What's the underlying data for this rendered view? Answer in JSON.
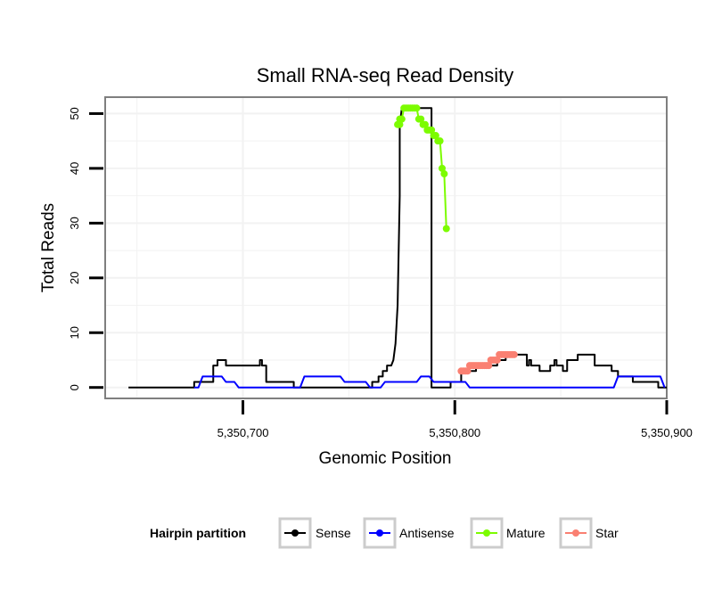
{
  "chart_data": {
    "type": "line",
    "title": "Small RNA-seq Read Density",
    "xlabel": "Genomic Position",
    "ylabel": "Total Reads",
    "xlim": [
      5350635,
      5350900
    ],
    "ylim": [
      -2,
      53
    ],
    "x_ticks": [
      5350700,
      5350800,
      5350900
    ],
    "x_tick_labels": [
      "5,350,700",
      "5,350,800",
      "5,350,900"
    ],
    "y_ticks": [
      0,
      10,
      20,
      30,
      40,
      50
    ],
    "y_tick_labels": [
      "0",
      "10",
      "20",
      "30",
      "40",
      "50"
    ],
    "grid": true,
    "legend": {
      "title": "Hairpin partition",
      "position": "bottom",
      "entries": [
        {
          "label": "Sense",
          "color": "#000000"
        },
        {
          "label": "Antisense",
          "color": "#0000ff"
        },
        {
          "label": "Mature",
          "color": "#7cfc00"
        },
        {
          "label": "Star",
          "color": "#fa8072"
        }
      ]
    },
    "series": [
      {
        "name": "Sense",
        "color": "#000000",
        "points": [
          [
            5350646,
            0
          ],
          [
            5350677,
            0
          ],
          [
            5350677,
            1
          ],
          [
            5350686,
            1
          ],
          [
            5350686,
            4
          ],
          [
            5350688,
            4
          ],
          [
            5350688,
            5
          ],
          [
            5350692,
            5
          ],
          [
            5350692,
            4
          ],
          [
            5350708,
            4
          ],
          [
            5350708,
            5
          ],
          [
            5350709,
            5
          ],
          [
            5350709,
            4
          ],
          [
            5350711,
            4
          ],
          [
            5350711,
            1
          ],
          [
            5350724,
            1
          ],
          [
            5350724,
            0
          ],
          [
            5350761,
            0
          ],
          [
            5350761,
            1
          ],
          [
            5350764,
            1
          ],
          [
            5350764,
            2
          ],
          [
            5350766,
            2
          ],
          [
            5350766,
            3
          ],
          [
            5350768,
            3
          ],
          [
            5350768,
            4
          ],
          [
            5350770,
            4
          ],
          [
            5350771,
            5
          ],
          [
            5350772,
            8
          ],
          [
            5350773,
            15
          ],
          [
            5350774,
            35
          ],
          [
            5350774,
            48
          ],
          [
            5350775,
            51
          ],
          [
            5350789,
            51
          ],
          [
            5350789,
            0
          ],
          [
            5350798,
            0
          ],
          [
            5350798,
            1
          ],
          [
            5350803,
            1
          ],
          [
            5350803,
            3
          ],
          [
            5350810,
            3
          ],
          [
            5350810,
            4
          ],
          [
            5350820,
            4
          ],
          [
            5350820,
            5
          ],
          [
            5350824,
            5
          ],
          [
            5350824,
            6
          ],
          [
            5350834,
            6
          ],
          [
            5350834,
            4
          ],
          [
            5350835,
            4
          ],
          [
            5350835,
            5
          ],
          [
            5350836,
            5
          ],
          [
            5350836,
            4
          ],
          [
            5350840,
            4
          ],
          [
            5350840,
            3
          ],
          [
            5350845,
            3
          ],
          [
            5350845,
            4
          ],
          [
            5350847,
            4
          ],
          [
            5350847,
            5
          ],
          [
            5350848,
            5
          ],
          [
            5350848,
            4
          ],
          [
            5350851,
            4
          ],
          [
            5350851,
            3
          ],
          [
            5350853,
            3
          ],
          [
            5350853,
            5
          ],
          [
            5350858,
            5
          ],
          [
            5350858,
            6
          ],
          [
            5350866,
            6
          ],
          [
            5350866,
            4
          ],
          [
            5350874,
            4
          ],
          [
            5350874,
            3
          ],
          [
            5350877,
            3
          ],
          [
            5350877,
            2
          ],
          [
            5350884,
            2
          ],
          [
            5350884,
            1
          ],
          [
            5350896,
            1
          ],
          [
            5350896,
            0
          ],
          [
            5350900,
            0
          ]
        ]
      },
      {
        "name": "Antisense",
        "color": "#0000ff",
        "points": [
          [
            5350677,
            0
          ],
          [
            5350679,
            0
          ],
          [
            5350681,
            2
          ],
          [
            5350690,
            2
          ],
          [
            5350692,
            1
          ],
          [
            5350696,
            1
          ],
          [
            5350698,
            0
          ],
          [
            5350727,
            0
          ],
          [
            5350729,
            2
          ],
          [
            5350746,
            2
          ],
          [
            5350748,
            1
          ],
          [
            5350758,
            1
          ],
          [
            5350760,
            0
          ],
          [
            5350765,
            0
          ],
          [
            5350767,
            1
          ],
          [
            5350782,
            1
          ],
          [
            5350784,
            2
          ],
          [
            5350788,
            2
          ],
          [
            5350790,
            1
          ],
          [
            5350805,
            1
          ],
          [
            5350807,
            0
          ],
          [
            5350875,
            0
          ],
          [
            5350877,
            2
          ],
          [
            5350897,
            2
          ],
          [
            5350899,
            0
          ]
        ]
      },
      {
        "name": "Mature",
        "color": "#7cfc00",
        "points": [
          [
            5350773,
            48
          ],
          [
            5350774,
            48
          ],
          [
            5350774,
            49
          ],
          [
            5350775,
            49
          ],
          [
            5350776,
            51
          ],
          [
            5350777,
            51
          ],
          [
            5350778,
            51
          ],
          [
            5350779,
            51
          ],
          [
            5350780,
            51
          ],
          [
            5350781,
            51
          ],
          [
            5350782,
            51
          ],
          [
            5350783,
            49
          ],
          [
            5350784,
            49
          ],
          [
            5350785,
            48
          ],
          [
            5350786,
            48
          ],
          [
            5350787,
            47
          ],
          [
            5350788,
            47
          ],
          [
            5350789,
            47
          ],
          [
            5350790,
            46
          ],
          [
            5350791,
            46
          ],
          [
            5350792,
            45
          ],
          [
            5350793,
            45
          ],
          [
            5350794,
            40
          ],
          [
            5350795,
            39
          ],
          [
            5350796,
            29
          ]
        ]
      },
      {
        "name": "Star",
        "color": "#fa8072",
        "points": [
          [
            5350803,
            3
          ],
          [
            5350804,
            3
          ],
          [
            5350805,
            3
          ],
          [
            5350806,
            3
          ],
          [
            5350807,
            4
          ],
          [
            5350808,
            4
          ],
          [
            5350809,
            4
          ],
          [
            5350810,
            4
          ],
          [
            5350811,
            4
          ],
          [
            5350812,
            4
          ],
          [
            5350813,
            4
          ],
          [
            5350814,
            4
          ],
          [
            5350815,
            4
          ],
          [
            5350816,
            4
          ],
          [
            5350817,
            5
          ],
          [
            5350818,
            5
          ],
          [
            5350819,
            5
          ],
          [
            5350820,
            5
          ],
          [
            5350821,
            6
          ],
          [
            5350822,
            6
          ],
          [
            5350823,
            6
          ],
          [
            5350824,
            6
          ],
          [
            5350825,
            6
          ],
          [
            5350826,
            6
          ],
          [
            5350827,
            6
          ],
          [
            5350828,
            6
          ]
        ]
      }
    ]
  }
}
